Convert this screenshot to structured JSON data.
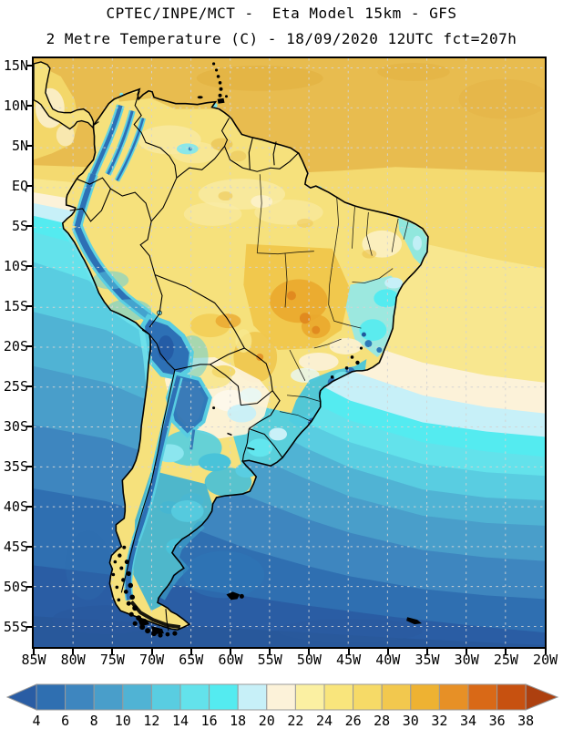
{
  "title": {
    "line1": "CPTEC/INPE/MCT -  Eta Model 15km - GFS",
    "line2": "2 Metre Temperature (C) - 18/09/2020 12UTC fct=207h"
  },
  "axes": {
    "y_labels": [
      "15N",
      "10N",
      "5N",
      "EQ",
      "5S",
      "10S",
      "15S",
      "20S",
      "25S",
      "30S",
      "35S",
      "40S",
      "45S",
      "50S",
      "55S"
    ],
    "x_labels": [
      "85W",
      "80W",
      "75W",
      "70W",
      "65W",
      "60W",
      "55W",
      "50W",
      "45W",
      "40W",
      "35W",
      "30W",
      "25W",
      "20W"
    ]
  },
  "colorbar": {
    "tick_labels": [
      "4",
      "6",
      "8",
      "10",
      "12",
      "14",
      "16",
      "18",
      "20",
      "22",
      "24",
      "26",
      "28",
      "30",
      "32",
      "34",
      "36",
      "38"
    ],
    "colors": [
      "#2a5da4",
      "#2f6fb1",
      "#3e86bf",
      "#499eca",
      "#50b3d4",
      "#59cde1",
      "#63e2eb",
      "#54ebf0",
      "#c7f0f8",
      "#fcf2d9",
      "#fbf0a2",
      "#f9e57c",
      "#f6da67",
      "#f2c84e",
      "#eeb232",
      "#e79026",
      "#d96917",
      "#c75110",
      "#ad400f"
    ]
  },
  "map_meta": {
    "grid_color": "#d4d4d4",
    "land_base_color": "#f6e17c",
    "ocean_warm_color": "#e8bc4f"
  }
}
